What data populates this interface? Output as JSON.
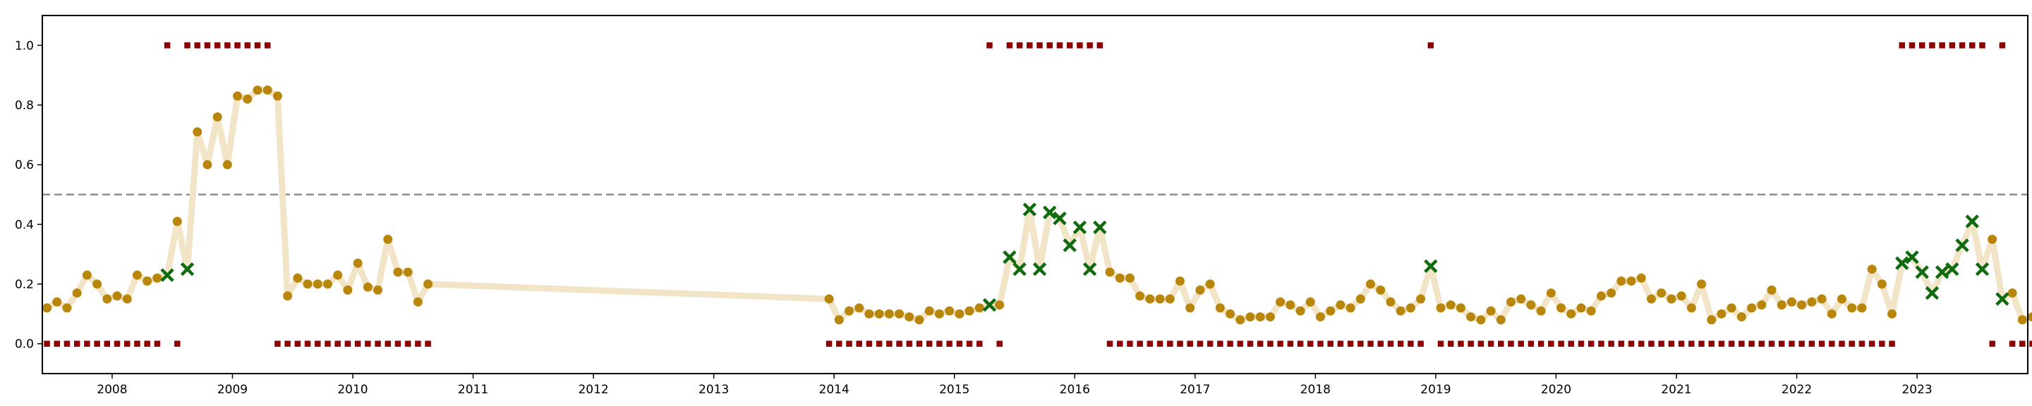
{
  "chart_data": {
    "type": "scatter",
    "title": "",
    "xlabel": "",
    "ylabel": "",
    "xlim": [
      2007.42,
      2023.92
    ],
    "ylim": [
      -0.1,
      1.1
    ],
    "grid": false,
    "legend": "none",
    "x_ticks": [
      "2008",
      "2009",
      "2010",
      "2011",
      "2012",
      "2013",
      "2014",
      "2015",
      "2016",
      "2017",
      "2018",
      "2019",
      "2020",
      "2021",
      "2022",
      "2023"
    ],
    "y_ticks": [
      "0.0",
      "0.2",
      "0.4",
      "0.6",
      "0.8",
      "1.0"
    ],
    "threshold": 0.5,
    "colors": {
      "line": "#f2e4c6",
      "point": "#b8860b",
      "cross": "#0f6b0f",
      "square": "#8b0000",
      "threshold": "#8c8c8c",
      "frame": "#000000"
    },
    "segments": [
      {
        "start": "2007-06",
        "probability": [
          0.12,
          0.14,
          0.12,
          0.17,
          0.23,
          0.2,
          0.15,
          0.16,
          0.15,
          0.23,
          0.21,
          0.22,
          0.23,
          0.41,
          0.25,
          0.71,
          0.6,
          0.76,
          0.6,
          0.83,
          0.82,
          0.85,
          0.85,
          0.83,
          0.16,
          0.22,
          0.2,
          0.2,
          0.2,
          0.23,
          0.18,
          0.27,
          0.19,
          0.18,
          0.35,
          0.24,
          0.24,
          0.14,
          0.2
        ],
        "label": [
          0,
          0,
          0,
          0,
          0,
          0,
          0,
          0,
          0,
          0,
          0,
          0,
          1,
          0,
          1,
          1,
          1,
          1,
          1,
          1,
          1,
          1,
          1,
          0,
          0,
          0,
          0,
          0,
          0,
          0,
          0,
          0,
          0,
          0,
          0,
          0,
          0,
          0,
          0
        ]
      },
      {
        "start": "2013-12",
        "probability": [
          0.15,
          0.08,
          0.11,
          0.12,
          0.1,
          0.1,
          0.1,
          0.1,
          0.09,
          0.08,
          0.11,
          0.1,
          0.11,
          0.1,
          0.11,
          0.12,
          0.13,
          0.13,
          0.29,
          0.25,
          0.45,
          0.25,
          0.44,
          0.42,
          0.33,
          0.39,
          0.25,
          0.39,
          0.24,
          0.22,
          0.22,
          0.16,
          0.15,
          0.15,
          0.15,
          0.21,
          0.12,
          0.18,
          0.2,
          0.12,
          0.1,
          0.08,
          0.09,
          0.09,
          0.09,
          0.14,
          0.13,
          0.11,
          0.14,
          0.09,
          0.11,
          0.13,
          0.12,
          0.15,
          0.2,
          0.18,
          0.14,
          0.11,
          0.12,
          0.15,
          0.26,
          0.12,
          0.13,
          0.12,
          0.09,
          0.08,
          0.11,
          0.08,
          0.14,
          0.15,
          0.13,
          0.11,
          0.17,
          0.12,
          0.1,
          0.12,
          0.11,
          0.16,
          0.17,
          0.21,
          0.21,
          0.22,
          0.15,
          0.17,
          0.15,
          0.16,
          0.12,
          0.2,
          0.08,
          0.1,
          0.12,
          0.09,
          0.12,
          0.13,
          0.18,
          0.13,
          0.14,
          0.13,
          0.14,
          0.15,
          0.1,
          0.15,
          0.12,
          0.12,
          0.25,
          0.2,
          0.1,
          0.27,
          0.29,
          0.24,
          0.17,
          0.24,
          0.25,
          0.33,
          0.41,
          0.25,
          0.35,
          0.15,
          0.17,
          0.08,
          0.09
        ],
        "label": [
          0,
          0,
          0,
          0,
          0,
          0,
          0,
          0,
          0,
          0,
          0,
          0,
          0,
          0,
          0,
          0,
          1,
          0,
          1,
          1,
          1,
          1,
          1,
          1,
          1,
          1,
          1,
          1,
          0,
          0,
          0,
          0,
          0,
          0,
          0,
          0,
          0,
          0,
          0,
          0,
          0,
          0,
          0,
          0,
          0,
          0,
          0,
          0,
          0,
          0,
          0,
          0,
          0,
          0,
          0,
          0,
          0,
          0,
          0,
          0,
          1,
          0,
          0,
          0,
          0,
          0,
          0,
          0,
          0,
          0,
          0,
          0,
          0,
          0,
          0,
          0,
          0,
          0,
          0,
          0,
          0,
          0,
          0,
          0,
          0,
          0,
          0,
          0,
          0,
          0,
          0,
          0,
          0,
          0,
          0,
          0,
          0,
          0,
          0,
          0,
          0,
          0,
          0,
          0,
          0,
          0,
          0,
          1,
          1,
          1,
          1,
          1,
          1,
          1,
          1,
          1,
          0,
          1,
          0,
          0,
          0
        ]
      }
    ]
  }
}
